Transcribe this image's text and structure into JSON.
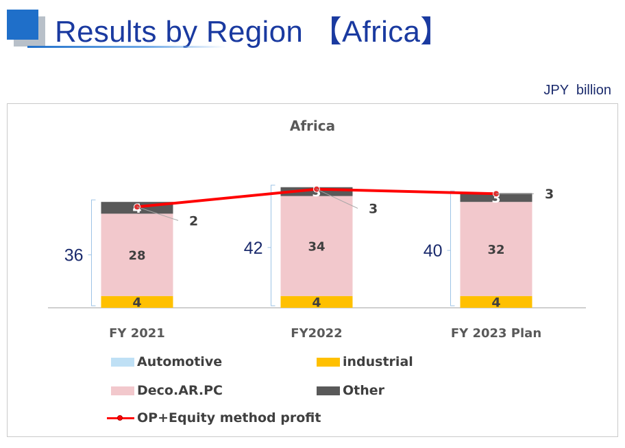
{
  "header": {
    "title": "Results by Region 【Africa】",
    "unit": "JPY  billion",
    "accent_color": "#1f6fc9"
  },
  "chart_data": {
    "type": "bar",
    "stacked": true,
    "title": "Africa",
    "categories": [
      "FY 2021",
      "FY2022",
      "FY 2023 Plan"
    ],
    "totals": [
      36,
      42,
      40
    ],
    "series": [
      {
        "name": "Automotive",
        "values": [
          0,
          0,
          0
        ],
        "color": "#bfe0f5"
      },
      {
        "name": "industrial",
        "values": [
          4,
          4,
          4
        ],
        "color": "#ffc000"
      },
      {
        "name": "Deco.AR.PC",
        "values": [
          28,
          34,
          32
        ],
        "color": "#f2c8cc"
      },
      {
        "name": "Other",
        "values": [
          4,
          3,
          3
        ],
        "color": "#595959"
      }
    ],
    "line_series": {
      "name": "OP+Equity method profit",
      "values": [
        2,
        3,
        3
      ],
      "color": "#ff0000"
    },
    "grid": false,
    "legend_position": "bottom"
  },
  "legend": {
    "items": [
      {
        "label": "Automotive",
        "color": "#bfe0f5"
      },
      {
        "label": "industrial",
        "color": "#ffc000"
      },
      {
        "label": "Deco.AR.PC",
        "color": "#f2c8cc"
      },
      {
        "label": "Other",
        "color": "#595959"
      },
      {
        "label": "OP+Equity method profit",
        "color": "#ff0000"
      }
    ]
  }
}
